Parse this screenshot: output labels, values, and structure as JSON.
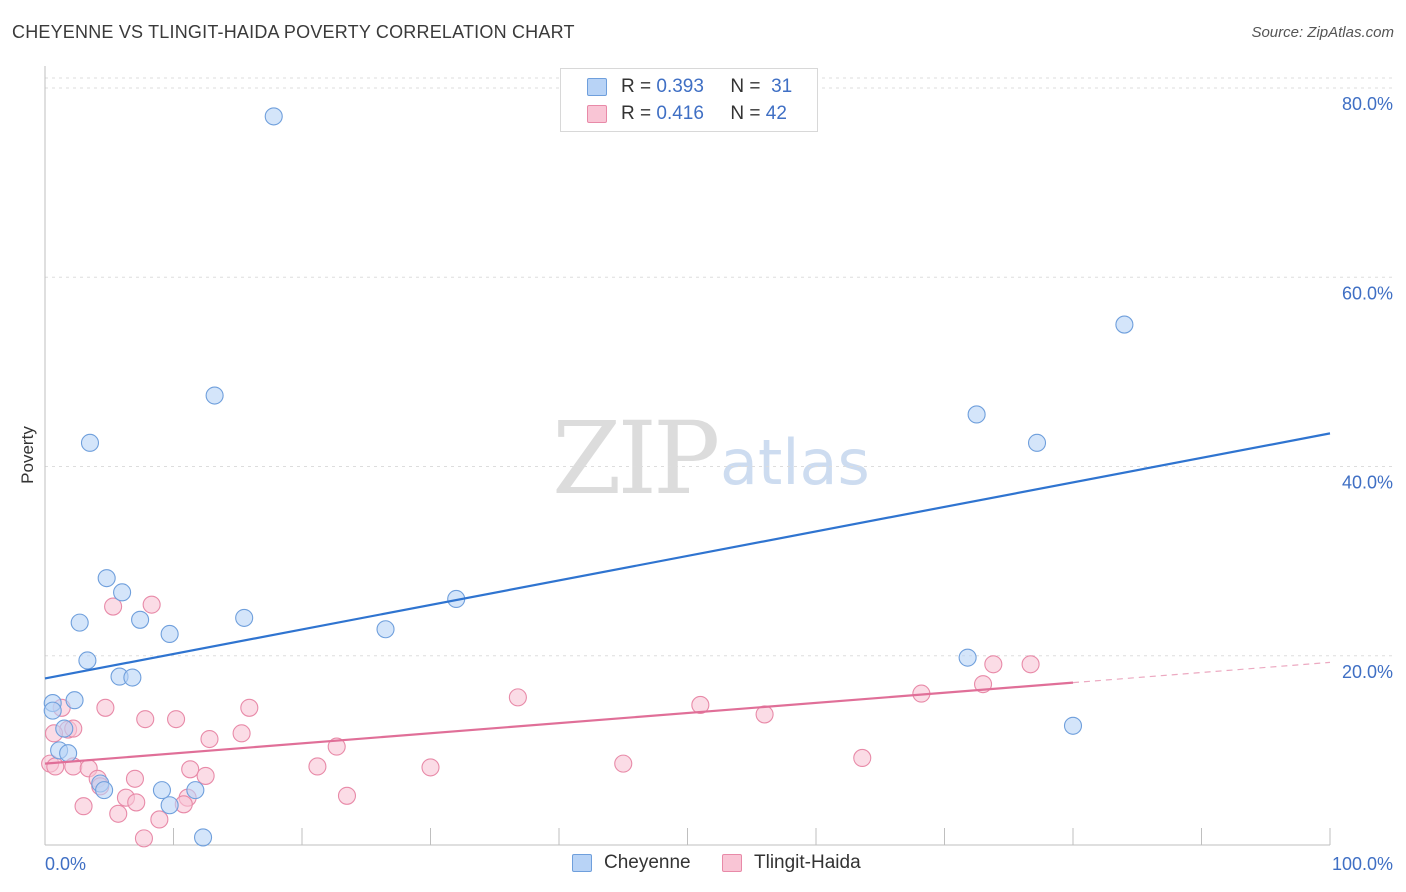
{
  "header": {
    "title": "CHEYENNE VS TLINGIT-HAIDA POVERTY CORRELATION CHART",
    "source": "Source: ZipAtlas.com"
  },
  "legend": {
    "rows": [
      {
        "r_label": "R =",
        "r_value": "0.393",
        "n_label": "N =",
        "n_value": "31"
      },
      {
        "r_label": "R =",
        "r_value": "0.416",
        "n_label": "N =",
        "n_value": "42"
      }
    ]
  },
  "watermark": {
    "zip": "ZIP",
    "atlas": "atlas"
  },
  "colors": {
    "cheyenne_fill": "#b8d3f6",
    "cheyenne_stroke": "#6f9fdc",
    "cheyenne_line": "#2f74d0",
    "tlingit_fill": "#f9c5d5",
    "tlingit_stroke": "#e88aa8",
    "tlingit_line": "#e06f98",
    "axis_label": "#3f6fc4",
    "grid": "#dddddd"
  },
  "chart_data": {
    "type": "scatter",
    "title": "CHEYENNE VS TLINGIT-HAIDA POVERTY CORRELATION CHART",
    "xlabel": "",
    "ylabel": "Poverty",
    "xlim": [
      0,
      100
    ],
    "ylim": [
      0,
      80
    ],
    "x_tick_labels": [
      "0.0%",
      "100.0%"
    ],
    "y_tick_labels": [
      "20.0%",
      "40.0%",
      "60.0%",
      "80.0%"
    ],
    "y_ticks": [
      20,
      40,
      60,
      80
    ],
    "grid": "horizontal dashed",
    "legend_placement": "top-center and bottom",
    "series": [
      {
        "name": "Cheyenne",
        "r": 0.393,
        "n": 31,
        "trend": {
          "x0": 0,
          "y0": 17.6,
          "x1": 100,
          "y1": 43.5,
          "dashed_from": null
        },
        "points": [
          [
            17.8,
            77.0
          ],
          [
            84.0,
            55.0
          ],
          [
            13.2,
            47.5
          ],
          [
            72.5,
            45.5
          ],
          [
            3.5,
            42.5
          ],
          [
            77.2,
            42.5
          ],
          [
            4.8,
            28.2
          ],
          [
            6.0,
            26.7
          ],
          [
            32.0,
            26.0
          ],
          [
            2.7,
            23.5
          ],
          [
            7.4,
            23.8
          ],
          [
            15.5,
            24.0
          ],
          [
            9.7,
            22.3
          ],
          [
            26.5,
            22.8
          ],
          [
            3.3,
            19.5
          ],
          [
            5.8,
            17.8
          ],
          [
            6.8,
            17.7
          ],
          [
            71.8,
            19.8
          ],
          [
            0.6,
            15.0
          ],
          [
            2.3,
            15.3
          ],
          [
            0.6,
            14.2
          ],
          [
            1.5,
            12.3
          ],
          [
            80.0,
            12.6
          ],
          [
            1.1,
            10.0
          ],
          [
            1.8,
            9.7
          ],
          [
            4.3,
            6.5
          ],
          [
            4.6,
            5.8
          ],
          [
            9.7,
            4.2
          ],
          [
            9.1,
            5.8
          ],
          [
            11.7,
            5.8
          ],
          [
            12.3,
            0.8
          ]
        ]
      },
      {
        "name": "Tlingit-Haida",
        "r": 0.416,
        "n": 42,
        "trend": {
          "x0": 0,
          "y0": 8.6,
          "x1": 100,
          "y1": 19.3,
          "dashed_from": 80
        },
        "points": [
          [
            8.3,
            25.4
          ],
          [
            5.3,
            25.2
          ],
          [
            73.8,
            19.1
          ],
          [
            76.7,
            19.1
          ],
          [
            73.0,
            17.0
          ],
          [
            68.2,
            16.0
          ],
          [
            51.0,
            14.8
          ],
          [
            36.8,
            15.6
          ],
          [
            56.0,
            13.8
          ],
          [
            1.3,
            14.5
          ],
          [
            4.7,
            14.5
          ],
          [
            15.9,
            14.5
          ],
          [
            7.8,
            13.3
          ],
          [
            10.2,
            13.3
          ],
          [
            1.8,
            12.2
          ],
          [
            2.2,
            12.3
          ],
          [
            0.7,
            11.8
          ],
          [
            15.3,
            11.8
          ],
          [
            12.8,
            11.2
          ],
          [
            22.7,
            10.4
          ],
          [
            63.6,
            9.2
          ],
          [
            21.2,
            8.3
          ],
          [
            30.0,
            8.2
          ],
          [
            45.0,
            8.6
          ],
          [
            0.4,
            8.6
          ],
          [
            0.8,
            8.3
          ],
          [
            2.2,
            8.3
          ],
          [
            3.4,
            8.1
          ],
          [
            11.3,
            8.0
          ],
          [
            4.1,
            7.0
          ],
          [
            7.0,
            7.0
          ],
          [
            12.5,
            7.3
          ],
          [
            4.3,
            6.2
          ],
          [
            23.5,
            5.2
          ],
          [
            6.3,
            5.0
          ],
          [
            11.1,
            5.0
          ],
          [
            7.1,
            4.5
          ],
          [
            10.8,
            4.3
          ],
          [
            3.0,
            4.1
          ],
          [
            5.7,
            3.3
          ],
          [
            8.9,
            2.7
          ],
          [
            7.7,
            0.7
          ]
        ]
      }
    ]
  }
}
